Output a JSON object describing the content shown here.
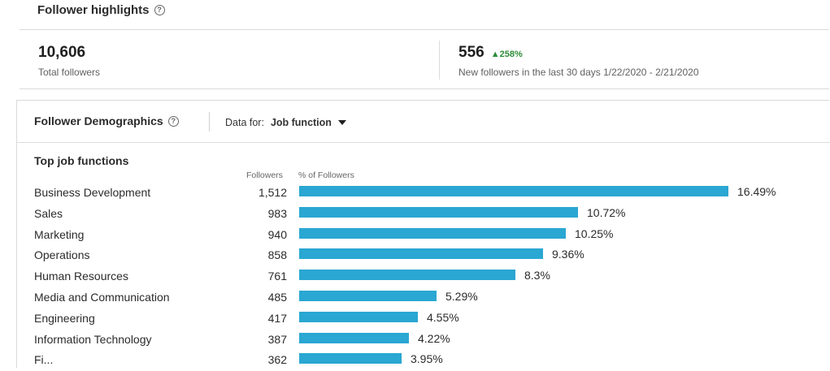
{
  "highlights": {
    "title": "Follower highlights",
    "total_followers": {
      "value": "10,606",
      "label": "Total followers"
    },
    "new_followers": {
      "value": "556",
      "change": "▲258%",
      "label": "New followers in the last 30 days 1/22/2020 - 2/21/2020"
    }
  },
  "demographics": {
    "title": "Follower Demographics",
    "data_for_label": "Data for:",
    "data_for_value": "Job function",
    "section_title": "Top job functions",
    "col_followers": "Followers",
    "col_pct": "% of Followers"
  },
  "colors": {
    "bar": "#2aa7d2",
    "positive_change": "#2e8b3a"
  },
  "chart_data": {
    "type": "bar",
    "title": "Top job functions",
    "categories": [
      "Business Development",
      "Sales",
      "Marketing",
      "Operations",
      "Human Resources",
      "Media and Communication",
      "Engineering",
      "Information Technology",
      "Fi..."
    ],
    "series": [
      {
        "name": "Followers",
        "values": [
          1512,
          983,
          940,
          858,
          761,
          485,
          417,
          387,
          362
        ]
      },
      {
        "name": "% of Followers",
        "values": [
          16.49,
          10.72,
          10.25,
          9.36,
          8.3,
          5.29,
          4.55,
          4.22,
          3.95
        ]
      }
    ],
    "rows": [
      {
        "name": "Business Development",
        "count": "1,512",
        "pct_label": "16.49%",
        "pct": 16.49
      },
      {
        "name": "Sales",
        "count": "983",
        "pct_label": "10.72%",
        "pct": 10.72
      },
      {
        "name": "Marketing",
        "count": "940",
        "pct_label": "10.25%",
        "pct": 10.25
      },
      {
        "name": "Operations",
        "count": "858",
        "pct_label": "9.36%",
        "pct": 9.36
      },
      {
        "name": "Human Resources",
        "count": "761",
        "pct_label": "8.3%",
        "pct": 8.3
      },
      {
        "name": "Media and Communication",
        "count": "485",
        "pct_label": "5.29%",
        "pct": 5.29
      },
      {
        "name": "Engineering",
        "count": "417",
        "pct_label": "4.55%",
        "pct": 4.55
      },
      {
        "name": "Information Technology",
        "count": "387",
        "pct_label": "4.22%",
        "pct": 4.22
      },
      {
        "name": "Fi...",
        "count": "362",
        "pct_label": "3.95%",
        "pct": 3.95
      }
    ]
  }
}
